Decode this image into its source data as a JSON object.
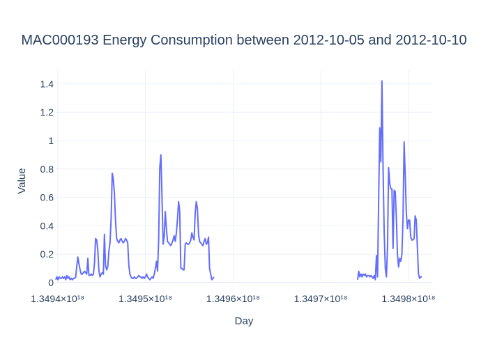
{
  "chart_data": {
    "type": "line",
    "title": "MAC000193 Energy Consumption between 2012-10-05 and 2012-10-10",
    "xlabel": "Day",
    "ylabel": "Value",
    "x_tick_values": [
      1.3494e+18,
      1.3495e+18,
      1.3496e+18,
      1.3497e+18,
      1.3498e+18
    ],
    "x_tick_labels": [
      "1.3494×10¹⁸",
      "1.3495×10¹⁸",
      "1.3496×10¹⁸",
      "1.3497×10¹⁸",
      "1.3498×10¹⁸"
    ],
    "y_ticks": [
      0,
      0.2,
      0.4,
      0.6,
      0.8,
      1,
      1.2,
      1.4
    ],
    "y_tick_labels": [
      "0",
      "0.2",
      "0.4",
      "0.6",
      "0.8",
      "1",
      "1.2",
      "1.4"
    ],
    "xlim": [
      1.34939782e+18,
      1.34982705e+18
    ],
    "ylim": [
      0,
      1.5
    ],
    "grid": true,
    "line_color": "#636efa",
    "series": [
      {
        "x": [
          1.34939782e+18,
          1.34939908e+18,
          1.34940034e+18,
          1.34940161e+18,
          1.34940287e+18,
          1.34940413e+18,
          1.34940539e+18,
          1.34940665e+18,
          1.34940791e+18,
          1.34940918e+18,
          1.34941044e+18,
          1.3494117e+18,
          1.34941296e+18,
          1.34941422e+18,
          1.34941548e+18,
          1.34941675e+18,
          1.34941801e+18,
          1.34941927e+18,
          1.34942053e+18,
          1.34942179e+18,
          1.34942305e+18,
          1.34942432e+18,
          1.34942558e+18,
          1.34942684e+18,
          1.3494281e+18,
          1.34942936e+18,
          1.34943063e+18,
          1.34943189e+18,
          1.34943315e+18,
          1.34943441e+18,
          1.34943567e+18,
          1.34943693e+18,
          1.3494382e+18,
          1.34943946e+18,
          1.34944072e+18,
          1.34944198e+18,
          1.34944324e+18,
          1.3494445e+18,
          1.34944577e+18,
          1.34944703e+18,
          1.34944829e+18,
          1.34944955e+18,
          1.34945081e+18,
          1.34945207e+18,
          1.34945334e+18,
          1.3494546e+18,
          1.34945586e+18,
          1.34945712e+18,
          1.34945838e+18,
          1.34945964e+18,
          1.34946091e+18,
          1.34946217e+18,
          1.34946343e+18,
          1.34946469e+18,
          1.34946595e+18,
          1.34946721e+18,
          1.34946848e+18,
          1.34946974e+18,
          1.349471e+18,
          1.34947226e+18,
          1.34947352e+18,
          1.34947479e+18,
          1.34947605e+18,
          1.34947731e+18,
          1.34947857e+18,
          1.34947983e+18,
          1.34948109e+18,
          1.34948236e+18,
          1.34948362e+18,
          1.34948488e+18,
          1.34948614e+18,
          1.3494874e+18,
          1.34948866e+18,
          1.34948993e+18,
          1.34949119e+18,
          1.34949245e+18,
          1.34949371e+18,
          1.34949497e+18,
          1.34949623e+18,
          1.3494975e+18,
          1.34949876e+18,
          1.34950002e+18,
          1.34950128e+18,
          1.34950254e+18,
          1.3495038e+18,
          1.34950507e+18,
          1.34950633e+18,
          1.34950759e+18,
          1.34950885e+18,
          1.34951011e+18,
          1.34951138e+18,
          1.34951264e+18,
          1.3495139e+18,
          1.34951516e+18,
          1.34951642e+18,
          1.34951768e+18,
          1.34951895e+18,
          1.34952021e+18,
          1.34952147e+18,
          1.34952273e+18,
          1.34952399e+18,
          1.34952525e+18,
          1.34952652e+18,
          1.34952778e+18,
          1.34952904e+18,
          1.3495303e+18,
          1.34953156e+18,
          1.34953282e+18,
          1.34953409e+18,
          1.34953535e+18,
          1.34953661e+18,
          1.34953787e+18,
          1.34953913e+18,
          1.34954039e+18,
          1.34954166e+18,
          1.34954292e+18,
          1.34954418e+18,
          1.34954544e+18,
          1.3495467e+18,
          1.34954796e+18,
          1.34954923e+18,
          1.34955049e+18,
          1.34955175e+18,
          1.34955301e+18,
          1.34955427e+18,
          1.34955553e+18,
          1.3495568e+18,
          1.34955806e+18,
          1.34955932e+18,
          1.34956058e+18,
          1.34956184e+18,
          1.34956311e+18,
          1.34956437e+18,
          1.34956563e+18,
          1.34956689e+18,
          1.34956815e+18,
          1.34956941e+18,
          1.34957068e+18,
          1.34957194e+18,
          1.3495732e+18,
          1.34957446e+18,
          1.34957572e+18,
          1.34957698e+18,
          1.34957825e+18,
          1.34957951e+18,
          1.34958077e+18,
          1.34958203e+18,
          1.34958329e+18,
          1.34958455e+18,
          1.34958582e+18,
          1.34958708e+18,
          1.34958834e+18,
          1.3495896e+18,
          1.34959086e+18,
          1.34959212e+18,
          1.34959339e+18,
          1.34959465e+18,
          1.34959591e+18,
          1.34959717e+18,
          1.34959843e+18,
          1.3495997e+18,
          1.34960096e+18,
          1.34960222e+18,
          1.34960348e+18,
          1.34960474e+18,
          1.349606e+18,
          1.34960727e+18,
          1.34960853e+18,
          1.34960979e+18,
          1.34961105e+18,
          1.34961231e+18,
          1.34961357e+18,
          1.34961484e+18,
          1.3496161e+18,
          1.34961736e+18,
          1.34961862e+18,
          1.34961988e+18,
          1.34962114e+18,
          1.34962241e+18,
          1.34962367e+18,
          1.34962493e+18,
          1.34962619e+18,
          1.34962745e+18,
          1.34962871e+18,
          1.34962998e+18,
          1.34963124e+18,
          1.3496325e+18,
          1.34963376e+18,
          1.34963502e+18,
          1.34963628e+18,
          1.34963755e+18,
          1.34963881e+18,
          1.34964007e+18,
          1.34964133e+18,
          1.34964259e+18,
          1.34964385e+18,
          1.34964512e+18,
          1.34964638e+18,
          1.34964764e+18,
          1.3496489e+18,
          1.34965016e+18,
          1.34965143e+18,
          1.34965269e+18,
          1.34965395e+18,
          1.34965521e+18,
          1.34965647e+18,
          1.34965773e+18,
          1.349659e+18,
          1.34966026e+18,
          1.34966152e+18
        ],
        "y": [
          0.02,
          0.04,
          0.02,
          0.04,
          0.03,
          0.03,
          0.04,
          0.03,
          0.04,
          0.02,
          0.05,
          0.03,
          0.04,
          0.02,
          0.03,
          0.02,
          0.03,
          0.03,
          0.04,
          0.12,
          0.18,
          0.13,
          0.09,
          0.06,
          0.06,
          0.07,
          0.08,
          0.07,
          0.06,
          0.17,
          0.05,
          0.05,
          0.06,
          0.05,
          0.06,
          0.14,
          0.31,
          0.3,
          0.23,
          0.08,
          0.04,
          0.06,
          0.07,
          0.06,
          0.34,
          0.12,
          0.09,
          0.11,
          0.22,
          0.28,
          0.45,
          0.77,
          0.73,
          0.63,
          0.44,
          0.31,
          0.29,
          0.28,
          0.3,
          0.31,
          0.29,
          0.28,
          0.29,
          0.31,
          0.3,
          0.28,
          0.12,
          0.06,
          0.04,
          0.03,
          0.03,
          0.04,
          0.03,
          0.03,
          0.04,
          0.05,
          0.04,
          0.04,
          0.03,
          0.04,
          0.03,
          0.04,
          0.06,
          0.04,
          0.03,
          0.02,
          0.03,
          0.04,
          0.03,
          0.06,
          0.1,
          0.15,
          0.08,
          0.3,
          0.81,
          0.9,
          0.6,
          0.27,
          0.33,
          0.5,
          0.38,
          0.29,
          0.28,
          0.27,
          0.26,
          0.28,
          0.3,
          0.33,
          0.29,
          0.35,
          0.45,
          0.57,
          0.5,
          0.1,
          0.1,
          0.09,
          0.09,
          0.27,
          0.28,
          0.27,
          0.27,
          0.28,
          0.3,
          0.35,
          0.32,
          0.3,
          0.49,
          0.57,
          0.52,
          0.34,
          0.29,
          0.28,
          0.27,
          0.26,
          0.29,
          0.31,
          0.27,
          0.28,
          0.32,
          0.1,
          0.06,
          0.02,
          0.03,
          0.04,
          null,
          null,
          null,
          null,
          null,
          null,
          null,
          null,
          null,
          null,
          null,
          null,
          null,
          null,
          null,
          null,
          null,
          null,
          null,
          null,
          null,
          null,
          null,
          null,
          null,
          null,
          null,
          null,
          null,
          null,
          null,
          null,
          null,
          null,
          null,
          null,
          null,
          null,
          null,
          null,
          null,
          null,
          null,
          null,
          null,
          null,
          null,
          null,
          null,
          null,
          null,
          null,
          null,
          null,
          null,
          null,
          null,
          null,
          null,
          null,
          null,
          null,
          null,
          null,
          null,
          null
        ]
      },
      {
        "x": [
          1.349742e+18,
          1.34974326e+18,
          1.34974452e+18,
          1.34974578e+18,
          1.34974705e+18,
          1.34974831e+18,
          1.34974957e+18,
          1.34975083e+18,
          1.34975209e+18,
          1.34975335e+18,
          1.34975462e+18,
          1.34975588e+18,
          1.34975714e+18,
          1.3497584e+18,
          1.34975966e+18,
          1.34976093e+18,
          1.34976219e+18,
          1.34976345e+18,
          1.34976471e+18,
          1.34976597e+18,
          1.34976723e+18,
          1.3497685e+18,
          1.34976976e+18,
          1.34977102e+18,
          1.34977228e+18,
          1.34977354e+18,
          1.3497748e+18,
          1.34977607e+18,
          1.34977733e+18,
          1.34977859e+18,
          1.34977985e+18,
          1.34978111e+18,
          1.34978237e+18,
          1.34978364e+18,
          1.3497849e+18,
          1.34978616e+18,
          1.34978742e+18,
          1.34978868e+18,
          1.34978994e+18,
          1.34979121e+18,
          1.34979247e+18,
          1.34979373e+18,
          1.34979499e+18,
          1.34979625e+18,
          1.34979752e+18,
          1.34979878e+18,
          1.34980004e+18,
          1.3498013e+18,
          1.34980256e+18,
          1.34980382e+18,
          1.34980509e+18,
          1.34980635e+18,
          1.34980761e+18,
          1.34980887e+18,
          1.34981013e+18,
          1.34981139e+18,
          1.34981266e+18,
          1.34981392e+18,
          1.34981518e+18,
          1.34981644e+18,
          1.3498177e+18,
          1.34981896e+18,
          1.34982023e+18,
          1.34982149e+18,
          1.34982275e+18,
          1.34982401e+18,
          1.34982527e+18,
          1.34982653e+18,
          1.34982705e+18
        ],
        "y": [
          0.02,
          0.08,
          0.04,
          0.06,
          0.04,
          0.06,
          0.05,
          0.06,
          0.04,
          0.05,
          0.05,
          0.04,
          0.05,
          0.04,
          0.03,
          0.05,
          0.02,
          0.19,
          0.04,
          0.6,
          1.09,
          0.85,
          1.42,
          0.8,
          0.35,
          0.1,
          0.04,
          0.25,
          0.81,
          0.7,
          0.66,
          0.66,
          0.24,
          0.65,
          0.64,
          0.45,
          0.2,
          0.11,
          0.17,
          0.15,
          0.2,
          0.45,
          0.99,
          0.75,
          0.5,
          0.38,
          0.44,
          0.44,
          0.32,
          0.3,
          0.3,
          0.31,
          0.47,
          0.44,
          0.25,
          0.06,
          0.03,
          0.04,
          0.04,
          null,
          null,
          null,
          null,
          null,
          null,
          null,
          null,
          null,
          null
        ]
      }
    ]
  }
}
